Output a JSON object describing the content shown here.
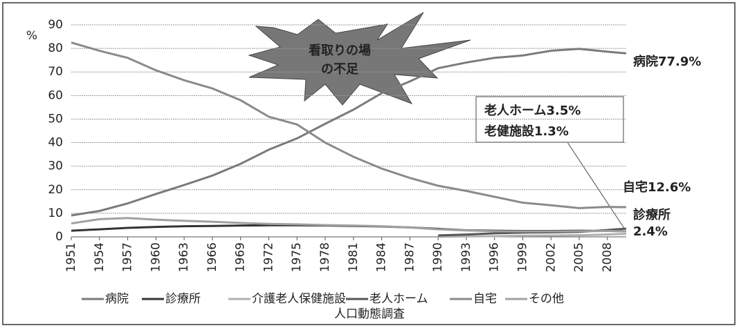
{
  "chart_data": {
    "type": "line",
    "y_label": "%",
    "caption": "人口動態調査",
    "x": [
      1951,
      1954,
      1957,
      1960,
      1963,
      1966,
      1969,
      1972,
      1975,
      1978,
      1981,
      1984,
      1987,
      1990,
      1993,
      1996,
      1999,
      2002,
      2005,
      2008,
      2010
    ],
    "xlim": [
      1951,
      2010
    ],
    "xticks": [
      1951,
      1954,
      1957,
      1960,
      1963,
      1966,
      1969,
      1972,
      1975,
      1978,
      1981,
      1984,
      1987,
      1990,
      1993,
      1996,
      1999,
      2002,
      2005,
      2008
    ],
    "ylim": [
      0,
      90
    ],
    "yticks": [
      0,
      10,
      20,
      30,
      40,
      50,
      60,
      70,
      80,
      90
    ],
    "grid": true,
    "legend": "bottom",
    "series": [
      {
        "name": "病院",
        "color": "#7a7a7a",
        "values": [
          9.1,
          11.0,
          14.2,
          18.2,
          22.0,
          26.0,
          31.0,
          37.0,
          41.8,
          48.0,
          54.0,
          61.0,
          66.0,
          71.6,
          74.0,
          76.0,
          77.0,
          79.0,
          79.8,
          78.6,
          77.9
        ]
      },
      {
        "name": "診療所",
        "color": "#333333",
        "values": [
          2.6,
          3.2,
          3.8,
          4.2,
          4.5,
          4.6,
          4.8,
          4.9,
          4.9,
          4.8,
          4.6,
          4.4,
          4.0,
          3.4,
          2.8,
          2.6,
          2.5,
          2.5,
          2.6,
          2.5,
          2.4
        ]
      },
      {
        "name": "介護老人保健施設",
        "color": "#b0b0b0",
        "values": [
          null,
          null,
          null,
          null,
          null,
          null,
          null,
          null,
          null,
          null,
          null,
          null,
          null,
          0.0,
          0.2,
          0.3,
          0.5,
          0.6,
          0.7,
          1.0,
          1.3
        ]
      },
      {
        "name": "老人ホーム",
        "color": "#555555",
        "values": [
          null,
          null,
          null,
          null,
          null,
          null,
          null,
          null,
          null,
          null,
          null,
          null,
          null,
          0.6,
          1.0,
          1.5,
          1.8,
          1.9,
          2.1,
          2.9,
          3.5
        ]
      },
      {
        "name": "自宅",
        "color": "#8a8a8a",
        "values": [
          82.5,
          79.0,
          76.0,
          70.7,
          66.5,
          63.0,
          58.0,
          51.0,
          47.7,
          40.0,
          34.0,
          29.0,
          25.0,
          21.7,
          19.5,
          17.0,
          14.5,
          13.4,
          12.2,
          12.7,
          12.6
        ]
      },
      {
        "name": "その他",
        "color": "#a0a0a0",
        "values": [
          5.7,
          7.5,
          8.0,
          7.3,
          6.8,
          6.4,
          5.9,
          5.5,
          5.3,
          5.0,
          4.8,
          4.5,
          4.0,
          3.2,
          2.7,
          2.4,
          2.3,
          2.3,
          2.4,
          2.5,
          2.4
        ]
      }
    ],
    "annotations": [
      "看取りの場",
      "の不足",
      "病院77.9%",
      "老人ホーム3.5%",
      "老健施設1.3%",
      "自宅12.6%",
      "診療所",
      "2.4%"
    ]
  }
}
